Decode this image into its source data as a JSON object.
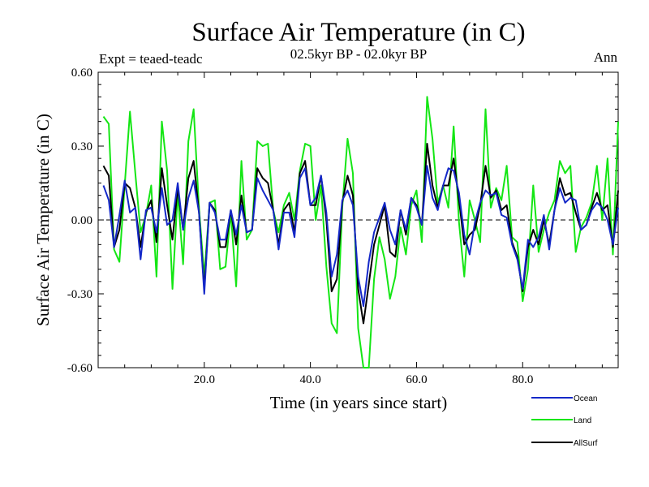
{
  "chart_data": {
    "type": "line",
    "title": "Surface Air Temperature (in C)",
    "subtitle_left": "Expt = teaed-teadc",
    "subtitle_center": "02.5kyr BP - 02.0kyr BP",
    "subtitle_right": "Ann",
    "xlabel": "Time (in years since start)",
    "ylabel": "Surface Air Temperature (in C)",
    "xlim": [
      0,
      98
    ],
    "ylim": [
      -0.6,
      0.6
    ],
    "xticks": [
      20,
      40,
      60,
      80
    ],
    "xtick_labels": [
      "20.0",
      "40.0",
      "60.0",
      "80.0"
    ],
    "yticks": [
      -0.6,
      -0.3,
      0.0,
      0.3,
      0.6
    ],
    "ytick_labels": [
      "-0.60",
      "-0.30",
      "0.00",
      "0.30",
      "0.60"
    ],
    "zero_line": "dashed",
    "legend_position": "bottom-right",
    "series": [
      {
        "name": "Ocean",
        "color": "#1428c8",
        "values": [
          0.14,
          0.08,
          -0.11,
          0.02,
          0.16,
          0.03,
          0.05,
          -0.16,
          0.04,
          0.05,
          -0.05,
          0.13,
          -0.02,
          0.0,
          0.15,
          -0.04,
          0.09,
          0.16,
          0.03,
          -0.3,
          0.07,
          0.03,
          -0.08,
          -0.08,
          0.04,
          -0.06,
          0.06,
          -0.05,
          -0.04,
          0.17,
          0.12,
          0.08,
          0.04,
          -0.12,
          0.03,
          0.03,
          -0.07,
          0.17,
          0.21,
          0.06,
          0.09,
          0.18,
          0.03,
          -0.23,
          -0.14,
          0.08,
          0.12,
          0.06,
          -0.23,
          -0.35,
          -0.17,
          -0.05,
          0.01,
          0.07,
          -0.04,
          -0.1,
          0.04,
          -0.04,
          0.09,
          0.05,
          -0.02,
          0.22,
          0.09,
          0.04,
          0.14,
          0.21,
          0.2,
          0.11,
          -0.06,
          -0.14,
          -0.01,
          0.07,
          0.12,
          0.1,
          0.11,
          0.02,
          0.01,
          -0.1,
          -0.16,
          -0.28,
          -0.08,
          -0.11,
          -0.07,
          0.02,
          -0.12,
          0.04,
          0.13,
          0.07,
          0.09,
          0.08,
          -0.04,
          -0.02,
          0.04,
          0.07,
          0.05,
          0.0,
          -0.1,
          0.05
        ]
      },
      {
        "name": "Land",
        "color": "#14e614",
        "values": [
          0.42,
          0.39,
          -0.12,
          -0.17,
          0.14,
          0.44,
          0.19,
          -0.05,
          0.02,
          0.14,
          -0.23,
          0.4,
          0.2,
          -0.28,
          0.11,
          -0.18,
          0.32,
          0.45,
          0.05,
          -0.23,
          0.07,
          0.08,
          -0.2,
          -0.19,
          0.03,
          -0.27,
          0.24,
          -0.08,
          -0.04,
          0.32,
          0.3,
          0.31,
          0.04,
          -0.05,
          0.06,
          0.11,
          0.0,
          0.2,
          0.31,
          0.3,
          0.0,
          0.14,
          -0.19,
          -0.42,
          -0.46,
          0.05,
          0.33,
          0.19,
          -0.44,
          -0.6,
          -0.6,
          -0.24,
          -0.07,
          -0.16,
          -0.32,
          -0.23,
          -0.03,
          -0.14,
          0.06,
          0.12,
          -0.09,
          0.5,
          0.33,
          0.07,
          0.14,
          0.05,
          0.38,
          -0.01,
          -0.23,
          0.08,
          0.0,
          -0.09,
          0.45,
          0.05,
          0.13,
          0.08,
          0.22,
          -0.07,
          -0.09,
          -0.33,
          -0.2,
          0.14,
          -0.13,
          -0.04,
          0.03,
          0.08,
          0.24,
          0.19,
          0.22,
          -0.13,
          -0.03,
          0.01,
          0.07,
          0.22,
          0.0,
          0.25,
          -0.14,
          0.4
        ]
      },
      {
        "name": "AllSurf",
        "color": "#000000",
        "values": [
          0.22,
          0.18,
          -0.11,
          -0.04,
          0.15,
          0.13,
          0.05,
          -0.11,
          0.03,
          0.08,
          -0.09,
          0.21,
          0.06,
          -0.08,
          0.13,
          -0.04,
          0.17,
          0.24,
          0.03,
          -0.28,
          0.07,
          0.04,
          -0.11,
          -0.11,
          0.04,
          -0.1,
          0.1,
          -0.05,
          -0.04,
          0.21,
          0.17,
          0.15,
          0.04,
          -0.1,
          0.04,
          0.07,
          -0.05,
          0.19,
          0.24,
          0.06,
          0.06,
          0.18,
          0.0,
          -0.29,
          -0.24,
          0.07,
          0.18,
          0.1,
          -0.28,
          -0.42,
          -0.26,
          -0.1,
          -0.02,
          0.06,
          -0.13,
          -0.15,
          0.04,
          -0.06,
          0.09,
          0.06,
          -0.02,
          0.31,
          0.14,
          0.05,
          0.14,
          0.14,
          0.25,
          0.08,
          -0.1,
          -0.06,
          -0.04,
          0.06,
          0.22,
          0.09,
          0.12,
          0.04,
          0.06,
          -0.09,
          -0.15,
          -0.29,
          -0.11,
          -0.04,
          -0.1,
          0.0,
          -0.1,
          0.04,
          0.17,
          0.1,
          0.11,
          0.03,
          -0.04,
          -0.02,
          0.05,
          0.11,
          0.04,
          0.06,
          -0.11,
          0.12
        ]
      }
    ]
  }
}
